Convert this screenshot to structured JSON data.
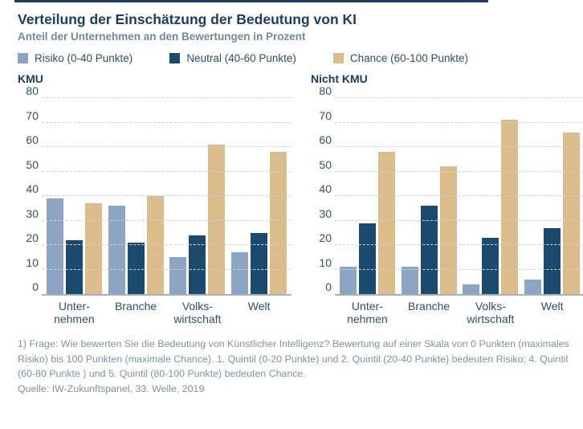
{
  "header": {
    "title": "Verteilung der Einschätzung der Bedeutung von KI",
    "subtitle": "Anteil der Unternehmen an den Bewertungen in Prozent"
  },
  "legend": {
    "items": [
      {
        "label": "Risiko (0-40 Punkte)",
        "color": "#8CA5C2",
        "icon": "swatch-square"
      },
      {
        "label": "Neutral (40-60 Punkte)",
        "color": "#1B4A6F",
        "icon": "swatch-square"
      },
      {
        "label": "Chance (60-100 Punkte)",
        "color": "#DABD8A",
        "icon": "swatch-square"
      }
    ]
  },
  "chart_data": {
    "type": "bar",
    "unit": "percent",
    "ylim": [
      0,
      80
    ],
    "yticks": [
      0,
      10,
      20,
      30,
      40,
      50,
      60,
      70,
      80
    ],
    "grid": "horizontal-dashed",
    "legend_position": "top",
    "categories": [
      "Unter-\nnehmen",
      "Branche",
      "Volks-\nwirtschaft",
      "Welt"
    ],
    "series_names": [
      "Risiko (0-40 Punkte)",
      "Neutral (40-60 Punkte)",
      "Chance (60-100 Punkte)"
    ],
    "panels": [
      {
        "title": "KMU",
        "series": [
          {
            "name": "Risiko (0-40 Punkte)",
            "color": "#8CA5C2",
            "values": [
              39,
              36,
              15,
              17
            ]
          },
          {
            "name": "Neutral (40-60 Punkte)",
            "color": "#1B4A6F",
            "values": [
              22,
              21,
              24,
              25
            ]
          },
          {
            "name": "Chance (60-100 Punkte)",
            "color": "#DABD8A",
            "values": [
              37,
              40,
              61,
              58
            ]
          }
        ]
      },
      {
        "title": "Nicht KMU",
        "series": [
          {
            "name": "Risiko (0-40 Punkte)",
            "color": "#8CA5C2",
            "values": [
              11,
              11,
              4,
              6
            ]
          },
          {
            "name": "Neutral (40-60 Punkte)",
            "color": "#1B4A6F",
            "values": [
              29,
              36,
              23,
              27
            ]
          },
          {
            "name": "Chance (60-100 Punkte)",
            "color": "#DABD8A",
            "values": [
              58,
              52,
              71,
              66
            ]
          }
        ]
      }
    ]
  },
  "footnote": {
    "note": "1) Frage: Wie bewerten Sie die Bedeutung von Künstlicher Intelligenz? Bewertung auf einer Skala von 0 Punkten (maximales Risiko) bis 100 Punkten (maximale Chance). 1. Quintil (0-20 Punkte) und 2. Quintil (20-40 Punkte) bedeuten Risiko; 4. Quintil (60-80 Punkte ) und 5. Quintil (80-100 Punkte) bedeuten Chance.",
    "source": "Quelle: IW-Zukunftspanel, 33. Welle, 2019"
  },
  "colors": {
    "accent_navy": "#1C3D63",
    "title_text": "#1B3C64",
    "subtitle_text": "#74889C",
    "label_text": "#2F4E6D",
    "muted_text": "#7E93A6",
    "grid": "#CCD1D6",
    "axis": "#A8B0B7"
  }
}
